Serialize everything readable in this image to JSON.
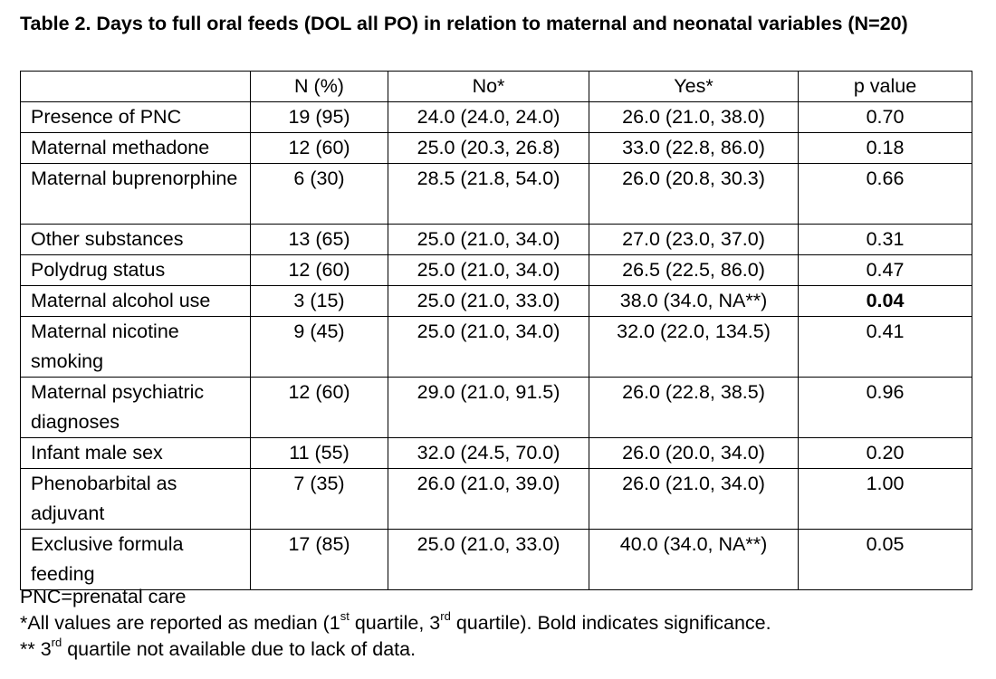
{
  "caption": "Table 2. Days to full oral feeds (DOL all PO) in relation to maternal and neonatal variables (N=20)",
  "table": {
    "headers": [
      "",
      "N (%)",
      "No*",
      "Yes*",
      "p value"
    ],
    "rows": [
      {
        "variable": "Presence of PNC",
        "n": "19 (95)",
        "no": "24.0 (24.0, 24.0)",
        "yes": "26.0 (21.0, 38.0)",
        "p": "0.70",
        "bold_p": false
      },
      {
        "variable": "Maternal methadone",
        "n": "12 (60)",
        "no": "25.0 (20.3, 26.8)",
        "yes": "33.0 (22.8, 86.0)",
        "p": "0.18",
        "bold_p": false
      },
      {
        "variable": "Maternal buprenorphine",
        "n": "6 (30)",
        "no": "28.5 (21.8, 54.0)",
        "yes": "26.0 (20.8, 30.3)",
        "p": "0.66",
        "bold_p": false
      },
      {
        "variable": "Other substances",
        "n": "13 (65)",
        "no": "25.0 (21.0, 34.0)",
        "yes": "27.0 (23.0, 37.0)",
        "p": "0.31",
        "bold_p": false
      },
      {
        "variable": "Polydrug status",
        "n": "12 (60)",
        "no": "25.0 (21.0, 34.0)",
        "yes": "26.5 (22.5, 86.0)",
        "p": "0.47",
        "bold_p": false
      },
      {
        "variable": "Maternal alcohol use",
        "n": "3 (15)",
        "no": "25.0 (21.0, 33.0)",
        "yes": "38.0 (34.0, NA**)",
        "p": "0.04",
        "bold_p": true
      },
      {
        "variable": "Maternal nicotine smoking",
        "n": "9 (45)",
        "no": "25.0 (21.0, 34.0)",
        "yes": "32.0 (22.0, 134.5)",
        "p": "0.41",
        "bold_p": false
      },
      {
        "variable": "Maternal psychiatric diagnoses",
        "n": "12 (60)",
        "no": "29.0 (21.0, 91.5)",
        "yes": "26.0 (22.8, 38.5)",
        "p": "0.96",
        "bold_p": false
      },
      {
        "variable": "Infant male sex",
        "n": "11 (55)",
        "no": "32.0 (24.5, 70.0)",
        "yes": "26.0 (20.0, 34.0)",
        "p": "0.20",
        "bold_p": false
      },
      {
        "variable": "Phenobarbital as adjuvant",
        "n": "7 (35)",
        "no": "26.0 (21.0, 39.0)",
        "yes": "26.0 (21.0, 34.0)",
        "p": "1.00",
        "bold_p": false
      },
      {
        "variable": "Exclusive formula feeding",
        "n": "17 (85)",
        "no": "25.0 (21.0, 33.0)",
        "yes": "40.0 (34.0, NA**)",
        "p": "0.05",
        "bold_p": false
      }
    ]
  },
  "footnotes": {
    "line1": "PNC=prenatal care",
    "line2_a": "*All values are reported as median (1",
    "line2_sup1": "st",
    "line2_b": " quartile, 3",
    "line2_sup2": "rd",
    "line2_c": " quartile). Bold indicates significance.",
    "line3_a": "** 3",
    "line3_sup": "rd",
    "line3_b": " quartile not available due to lack of data."
  }
}
